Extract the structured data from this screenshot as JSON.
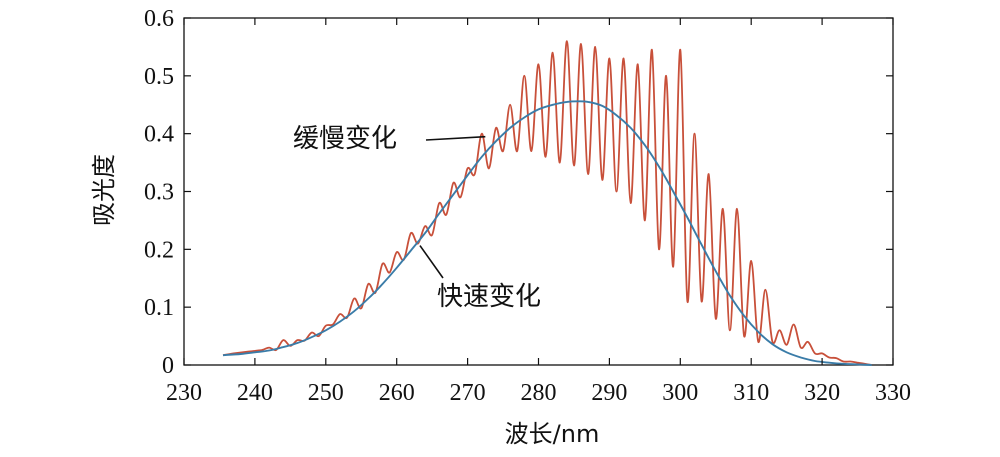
{
  "chart_data": {
    "type": "line",
    "title": "",
    "xlabel": "波长/nm",
    "ylabel": "吸光度",
    "xlim": [
      230,
      330
    ],
    "ylim": [
      0,
      0.6
    ],
    "xticks": [
      "230",
      "240",
      "250",
      "260",
      "270",
      "280",
      "290",
      "300",
      "310",
      "320",
      "330"
    ],
    "yticks": [
      "0",
      "0.1",
      "0.2",
      "0.3",
      "0.4",
      "0.5",
      "0.6"
    ],
    "grid": false,
    "legend": "none",
    "series": [
      {
        "color": "#c8503a",
        "x": [
          235.5,
          237,
          239,
          241,
          242,
          243,
          244,
          245,
          246,
          247,
          248,
          249,
          250,
          251,
          252,
          253,
          254,
          255,
          256,
          257,
          258,
          259,
          260,
          261,
          262,
          263,
          264,
          265,
          266,
          267,
          268,
          269,
          270,
          271,
          272,
          273,
          274,
          275,
          276,
          277,
          278,
          279,
          280,
          281,
          282,
          283,
          284,
          285,
          286,
          287,
          288,
          289,
          290,
          291,
          292,
          293,
          294,
          295,
          296,
          297,
          298,
          299,
          300,
          301,
          302,
          303,
          304,
          305,
          306,
          307,
          308,
          309,
          310,
          311,
          312,
          313,
          314,
          315,
          316,
          317,
          318,
          319,
          320,
          321,
          322,
          323,
          324,
          325,
          326,
          327
        ],
        "y": [
          0.017,
          0.02,
          0.023,
          0.026,
          0.03,
          0.026,
          0.043,
          0.033,
          0.043,
          0.042,
          0.056,
          0.05,
          0.068,
          0.07,
          0.088,
          0.082,
          0.115,
          0.098,
          0.14,
          0.125,
          0.175,
          0.16,
          0.195,
          0.182,
          0.228,
          0.21,
          0.24,
          0.225,
          0.28,
          0.26,
          0.315,
          0.29,
          0.34,
          0.33,
          0.4,
          0.34,
          0.41,
          0.37,
          0.45,
          0.37,
          0.5,
          0.37,
          0.52,
          0.36,
          0.54,
          0.35,
          0.56,
          0.345,
          0.555,
          0.33,
          0.55,
          0.32,
          0.53,
          0.3,
          0.53,
          0.28,
          0.52,
          0.25,
          0.545,
          0.2,
          0.5,
          0.17,
          0.545,
          0.11,
          0.4,
          0.11,
          0.33,
          0.08,
          0.27,
          0.06,
          0.27,
          0.05,
          0.18,
          0.04,
          0.13,
          0.04,
          0.06,
          0.035,
          0.07,
          0.03,
          0.04,
          0.02,
          0.02,
          0.013,
          0.012,
          0.006,
          0.006,
          0.004,
          0.002,
          0.0
        ]
      },
      {
        "color": "#3a7ca8",
        "x": [
          235.5,
          238,
          240,
          242,
          244,
          246,
          248,
          250,
          252,
          254,
          256,
          258,
          260,
          262,
          264,
          266,
          268,
          270,
          272,
          274,
          276,
          278,
          280,
          282,
          284,
          285.5,
          287,
          289,
          291,
          293,
          295,
          297,
          299,
          301,
          303,
          305,
          307,
          309,
          311,
          313,
          315,
          317,
          319,
          321,
          323,
          325,
          327
        ],
        "y": [
          0.017,
          0.019,
          0.022,
          0.025,
          0.031,
          0.038,
          0.048,
          0.06,
          0.075,
          0.093,
          0.115,
          0.14,
          0.168,
          0.198,
          0.228,
          0.262,
          0.295,
          0.328,
          0.36,
          0.387,
          0.41,
          0.428,
          0.442,
          0.45,
          0.455,
          0.456,
          0.455,
          0.448,
          0.432,
          0.41,
          0.38,
          0.343,
          0.3,
          0.255,
          0.208,
          0.162,
          0.12,
          0.085,
          0.057,
          0.036,
          0.022,
          0.013,
          0.007,
          0.004,
          0.002,
          0.001,
          0.0
        ]
      }
    ],
    "annotations": [
      {
        "text": "缓慢变化",
        "x": 272.5,
        "y": 0.4
      },
      {
        "text": "快速变化",
        "x": 263,
        "y": 0.21
      }
    ]
  }
}
